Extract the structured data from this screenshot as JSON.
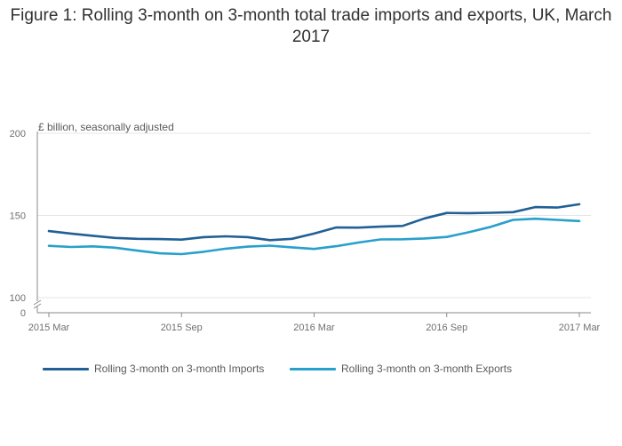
{
  "title": "Figure 1: Rolling 3-month on 3-month total trade imports and exports, UK, March 2017",
  "chart_data": {
    "type": "line",
    "ylabel": "£ billion, seasonally adjusted",
    "ylim": [
      100,
      200
    ],
    "y_axis_floor_label": "0",
    "y_ticks": [
      100,
      150,
      200
    ],
    "x_ticks": [
      "2015 Mar",
      "2015 Sep",
      "2016 Mar",
      "2016 Sep",
      "2017 Mar"
    ],
    "x": [
      "2015 Mar",
      "2015 Apr",
      "2015 May",
      "2015 Jun",
      "2015 Jul",
      "2015 Aug",
      "2015 Sep",
      "2015 Oct",
      "2015 Nov",
      "2015 Dec",
      "2016 Jan",
      "2016 Feb",
      "2016 Mar",
      "2016 Apr",
      "2016 May",
      "2016 Jun",
      "2016 Jul",
      "2016 Aug",
      "2016 Sep",
      "2016 Oct",
      "2016 Nov",
      "2016 Dec",
      "2017 Jan",
      "2017 Feb",
      "2017 Mar"
    ],
    "series": [
      {
        "name": "Rolling 3-month on 3-month Imports",
        "color": "#206095",
        "values": [
          140.5,
          139.0,
          137.6,
          136.3,
          135.8,
          135.6,
          135.3,
          136.8,
          137.3,
          136.8,
          135.0,
          135.8,
          139.0,
          142.7,
          142.6,
          143.2,
          143.6,
          148.2,
          151.5,
          151.4,
          151.6,
          152.0,
          155.1,
          154.8,
          156.8
        ]
      },
      {
        "name": "Rolling 3-month on 3-month Exports",
        "color": "#27a0cc",
        "values": [
          131.5,
          130.8,
          131.2,
          130.4,
          128.6,
          127.0,
          126.5,
          127.9,
          129.8,
          131.0,
          131.6,
          130.6,
          129.6,
          131.3,
          133.5,
          135.4,
          135.5,
          136.0,
          136.9,
          139.8,
          143.1,
          147.3,
          148.0,
          147.3,
          146.6
        ]
      }
    ]
  }
}
